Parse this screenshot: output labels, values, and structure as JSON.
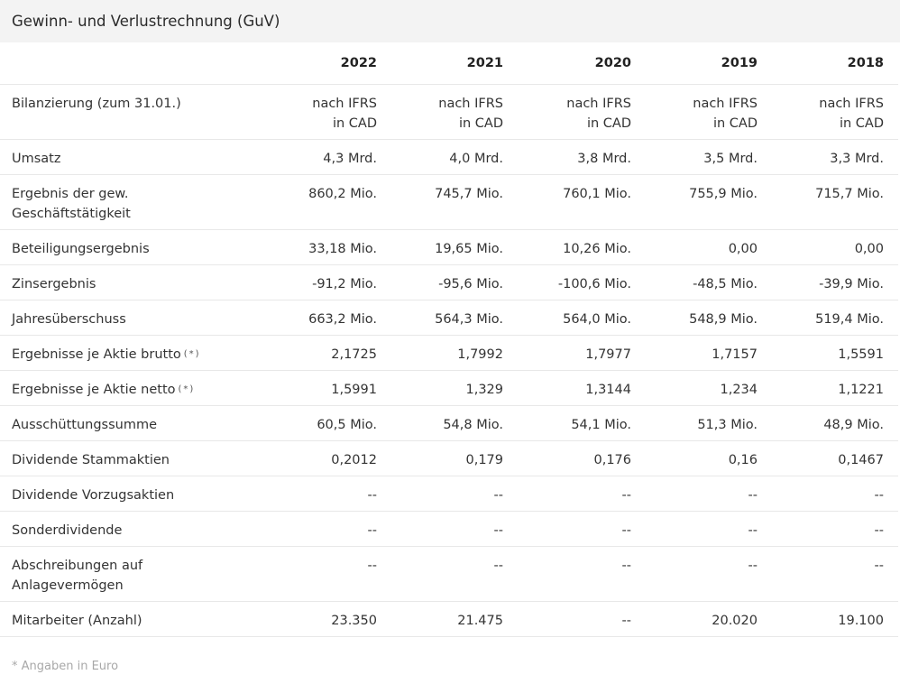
{
  "title": "Gewinn- und Verlustrechnung (GuV)",
  "years": [
    "2022",
    "2021",
    "2020",
    "2019",
    "2018"
  ],
  "rows": [
    {
      "label": "Bilanzierung (zum 31.01.)",
      "lines": 2,
      "values": [
        "nach IFRS in CAD",
        "nach IFRS in CAD",
        "nach IFRS in CAD",
        "nach IFRS in CAD",
        "nach IFRS in CAD"
      ]
    },
    {
      "label": "Umsatz",
      "lines": 1,
      "values": [
        "4,3 Mrd.",
        "4,0 Mrd.",
        "3,8 Mrd.",
        "3,5 Mrd.",
        "3,3 Mrd."
      ]
    },
    {
      "label": "Ergebnis der gew. Geschäftstätigkeit",
      "lines": 2,
      "values": [
        "860,2 Mio.",
        "745,7 Mio.",
        "760,1 Mio.",
        "755,9 Mio.",
        "715,7 Mio."
      ]
    },
    {
      "label": "Beteiligungsergebnis",
      "lines": 1,
      "values": [
        "33,18 Mio.",
        "19,65 Mio.",
        "10,26 Mio.",
        "0,00",
        "0,00"
      ]
    },
    {
      "label": "Zinsergebnis",
      "lines": 1,
      "values": [
        "-91,2 Mio.",
        "-95,6 Mio.",
        "-100,6 Mio.",
        "-48,5 Mio.",
        "-39,9 Mio."
      ]
    },
    {
      "label": "Jahresüberschuss",
      "lines": 1,
      "values": [
        "663,2 Mio.",
        "564,3 Mio.",
        "564,0 Mio.",
        "548,9 Mio.",
        "519,4 Mio."
      ]
    },
    {
      "label": "Ergebnisse je Aktie brutto",
      "note": "(*)",
      "lines": 1,
      "values": [
        "2,1725",
        "1,7992",
        "1,7977",
        "1,7157",
        "1,5591"
      ]
    },
    {
      "label": "Ergebnisse je Aktie netto",
      "note": "(*)",
      "lines": 1,
      "values": [
        "1,5991",
        "1,329",
        "1,3144",
        "1,234",
        "1,1221"
      ]
    },
    {
      "label": "Ausschüttungssumme",
      "lines": 1,
      "values": [
        "60,5 Mio.",
        "54,8 Mio.",
        "54,1 Mio.",
        "51,3 Mio.",
        "48,9 Mio."
      ]
    },
    {
      "label": "Dividende Stammaktien",
      "lines": 1,
      "values": [
        "0,2012",
        "0,179",
        "0,176",
        "0,16",
        "0,1467"
      ]
    },
    {
      "label": "Dividende Vorzugsaktien",
      "lines": 1,
      "values": [
        "--",
        "--",
        "--",
        "--",
        "--"
      ]
    },
    {
      "label": "Sonderdividende",
      "lines": 1,
      "values": [
        "--",
        "--",
        "--",
        "--",
        "--"
      ]
    },
    {
      "label": "Abschreibungen auf Anlagevermögen",
      "lines": 2,
      "values": [
        "--",
        "--",
        "--",
        "--",
        "--"
      ]
    },
    {
      "label": "Mitarbeiter (Anzahl)",
      "lines": 1,
      "values": [
        "23.350",
        "21.475",
        "--",
        "20.020",
        "19.100"
      ]
    }
  ],
  "footnote": "* Angaben in Euro"
}
